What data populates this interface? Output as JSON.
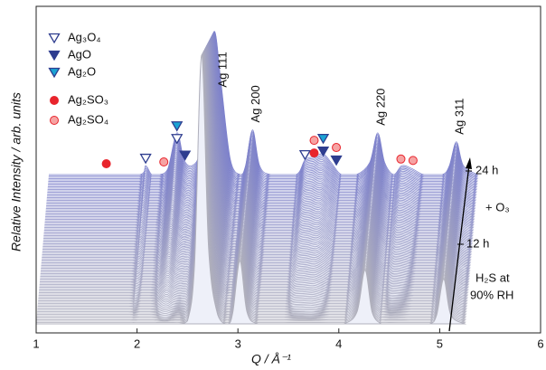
{
  "chart_data": {
    "type": "waterfall",
    "xlabel": "Q / Å⁻¹",
    "ylabel": "Relative Intensity / arb. units",
    "xlim": [
      1,
      6
    ],
    "xticks": [
      1,
      2,
      3,
      4,
      5,
      6
    ],
    "ylim": [
      0,
      100
    ],
    "x": [
      1.0,
      1.5,
      1.9,
      1.96,
      2.02,
      2.1,
      2.18,
      2.27,
      2.34,
      2.42,
      2.5,
      2.57,
      2.64,
      2.71,
      2.8,
      2.9,
      2.95,
      3.02,
      3.09,
      3.2,
      3.45,
      3.54,
      3.63,
      3.72,
      3.8,
      3.9,
      4.05,
      4.18,
      4.26,
      4.33,
      4.42,
      4.5,
      4.6,
      4.72,
      4.9,
      4.97,
      5.04,
      5.11,
      5.25
    ],
    "series": [
      {
        "color": "#b0b0bc",
        "values": [
          0,
          0,
          0,
          0,
          0,
          0,
          0,
          0,
          0,
          0,
          1,
          20,
          90,
          25,
          3,
          0,
          4,
          21,
          4,
          0,
          0,
          0,
          0,
          0,
          0,
          0,
          0,
          4,
          18,
          4,
          0,
          0,
          0,
          0,
          0,
          3,
          15,
          3,
          0
        ]
      },
      {
        "color": "#7d81cc",
        "values": [
          0,
          0,
          0,
          3,
          0,
          0,
          2,
          14,
          5,
          3,
          8,
          28,
          48,
          30,
          5,
          0,
          3,
          15,
          3,
          0,
          0,
          5,
          6,
          7,
          4,
          0,
          0,
          4,
          14,
          4,
          0,
          3,
          2,
          0,
          0,
          3,
          11,
          3,
          0
        ]
      }
    ],
    "peak_labels": [
      {
        "text": "Ag 111",
        "x": 2.64
      },
      {
        "text": "Ag 200",
        "x": 3.02
      },
      {
        "text": "Ag 220",
        "x": 4.26
      },
      {
        "text": "Ag 311",
        "x": 5.04
      }
    ],
    "legend": [
      {
        "name": "Ag₃O₄",
        "marker": "open-triangle",
        "color": "#2e3d8f",
        "x": [
          1.96,
          2.27,
          3.54
        ]
      },
      {
        "name": "AgO",
        "marker": "triangle",
        "color": "#2e3d8f",
        "x": [
          2.35,
          3.72,
          3.85
        ]
      },
      {
        "name": "Ag₂O",
        "marker": "triangle",
        "color": "#1aa3d4",
        "x": [
          2.27,
          3.72
        ]
      },
      {
        "name": "Ag₂SO₃",
        "marker": "circle",
        "color": "#e8242c",
        "x": [
          1.57,
          3.63
        ]
      },
      {
        "name": "Ag₂SO₄",
        "marker": "open-circle",
        "color": "#e8242c",
        "x": [
          2.14,
          3.63,
          3.85,
          4.49,
          4.61
        ]
      }
    ],
    "annotations": [
      "24 h",
      "+ O₃",
      "12 h",
      "H₂S at",
      "90% RH"
    ]
  }
}
